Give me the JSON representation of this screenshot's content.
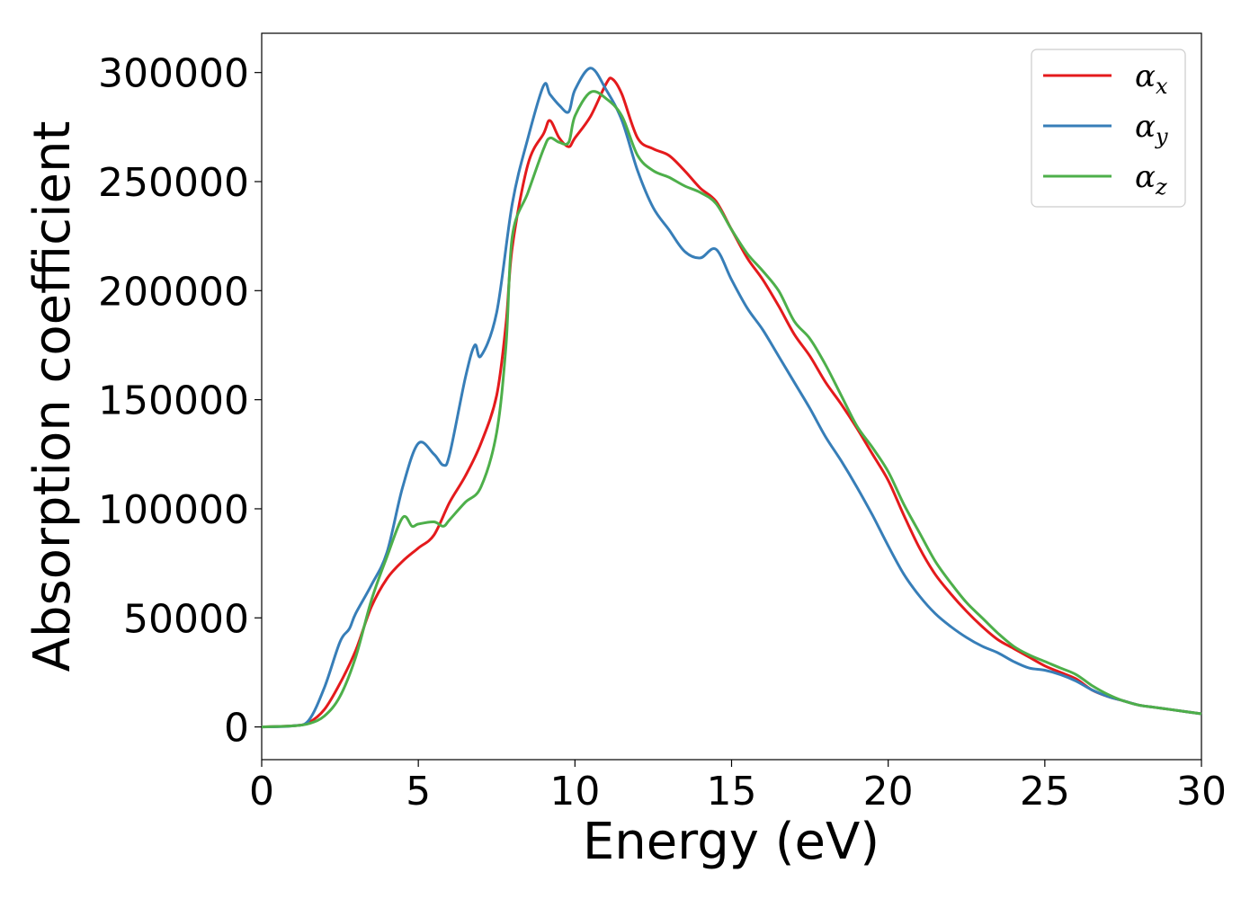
{
  "chart_data": {
    "type": "line",
    "xlabel": "Energy (eV)",
    "ylabel": "Absorption coefficient",
    "xlim": [
      0,
      30
    ],
    "ylim": [
      -15000,
      318000
    ],
    "xticks": [
      0,
      5,
      10,
      15,
      20,
      25,
      30
    ],
    "yticks": [
      0,
      50000,
      100000,
      150000,
      200000,
      250000,
      300000
    ],
    "grid": false,
    "legend_position": "top-right",
    "series": [
      {
        "name": "α",
        "subscript": "x",
        "color": "#e41a1c",
        "x": [
          0,
          1,
          1.5,
          2,
          2.5,
          3,
          3.5,
          4,
          4.5,
          5,
          5.5,
          6,
          6.5,
          7,
          7.5,
          7.8,
          8,
          8.5,
          9,
          9.2,
          9.5,
          9.8,
          10,
          10.5,
          11,
          11.2,
          11.5,
          12,
          12.5,
          13,
          13.5,
          14,
          14.5,
          15,
          15.5,
          16,
          16.5,
          17,
          17.5,
          18,
          18.5,
          19,
          19.5,
          20,
          20.5,
          21,
          21.5,
          22,
          22.5,
          23,
          23.5,
          24,
          24.5,
          25,
          25.5,
          26,
          26.5,
          27,
          27.5,
          28,
          28.5,
          29,
          29.5,
          30
        ],
        "y": [
          0,
          500,
          2000,
          8000,
          20000,
          35000,
          55000,
          68000,
          76000,
          82000,
          88000,
          103000,
          115000,
          130000,
          152000,
          185000,
          220000,
          258000,
          272000,
          278000,
          270000,
          266000,
          270000,
          280000,
          295000,
          297000,
          290000,
          270000,
          265000,
          262000,
          255000,
          247000,
          241000,
          228000,
          215000,
          205000,
          193000,
          180000,
          170000,
          158000,
          148000,
          137000,
          125000,
          113000,
          97000,
          82000,
          70000,
          61000,
          53000,
          46000,
          40000,
          36000,
          32000,
          28000,
          25000,
          22000,
          17000,
          14000,
          12000,
          10000,
          9000,
          8000,
          7000,
          6000
        ]
      },
      {
        "name": "α",
        "subscript": "y",
        "color": "#377eb8",
        "x": [
          0,
          1,
          1.5,
          2,
          2.5,
          2.8,
          3,
          3.5,
          4,
          4.5,
          5,
          5.5,
          5.8,
          6,
          6.5,
          6.8,
          7,
          7.5,
          8,
          8.5,
          9,
          9.2,
          9.5,
          9.8,
          10,
          10.5,
          11,
          11.5,
          12,
          12.5,
          13,
          13.5,
          14,
          14.5,
          15,
          15.5,
          16,
          16.5,
          17,
          17.5,
          18,
          18.5,
          19,
          19.5,
          20,
          20.5,
          21,
          21.5,
          22,
          22.5,
          23,
          23.5,
          24,
          24.5,
          25,
          25.5,
          26,
          26.5,
          27,
          27.5,
          28,
          28.5,
          29,
          29.5,
          30
        ],
        "y": [
          0,
          500,
          3000,
          18000,
          39000,
          45000,
          52000,
          65000,
          80000,
          110000,
          130000,
          125000,
          120000,
          125000,
          160000,
          175000,
          170000,
          190000,
          240000,
          270000,
          294000,
          290000,
          285000,
          282000,
          292000,
          302000,
          292000,
          278000,
          255000,
          238000,
          228000,
          218000,
          215000,
          219000,
          205000,
          192000,
          182000,
          170000,
          158000,
          146000,
          133000,
          122000,
          110000,
          97000,
          83000,
          70000,
          60000,
          52000,
          46000,
          41000,
          37000,
          34000,
          30000,
          27000,
          26000,
          24000,
          21000,
          17000,
          14000,
          12000,
          10000,
          9000,
          8000,
          7000,
          6000
        ]
      },
      {
        "name": "α",
        "subscript": "z",
        "color": "#4daf4a",
        "x": [
          0,
          1,
          1.5,
          2,
          2.5,
          3,
          3.5,
          4,
          4.5,
          4.8,
          5,
          5.5,
          5.8,
          6,
          6.5,
          7,
          7.5,
          7.8,
          8,
          8.5,
          9,
          9.2,
          9.5,
          9.8,
          10,
          10.5,
          11,
          11.5,
          12,
          12.5,
          13,
          13.5,
          14,
          14.5,
          15,
          15.5,
          16,
          16.5,
          17,
          17.5,
          18,
          18.5,
          19,
          19.5,
          20,
          20.5,
          21,
          21.5,
          22,
          22.5,
          23,
          23.5,
          24,
          24.5,
          25,
          25.5,
          26,
          26.5,
          27,
          27.5,
          28,
          28.5,
          29,
          29.5,
          30
        ],
        "y": [
          0,
          500,
          1500,
          5000,
          14000,
          32000,
          58000,
          78000,
          96000,
          92000,
          93000,
          94000,
          92000,
          95000,
          103000,
          110000,
          135000,
          175000,
          225000,
          245000,
          265000,
          270000,
          268000,
          268000,
          280000,
          291000,
          288000,
          280000,
          262000,
          255000,
          252000,
          248000,
          245000,
          240000,
          228000,
          217000,
          209000,
          200000,
          186000,
          178000,
          166000,
          152000,
          138000,
          128000,
          117000,
          102000,
          89000,
          76000,
          66000,
          57000,
          50000,
          43000,
          37000,
          33000,
          30000,
          27000,
          24000,
          19000,
          15000,
          12000,
          10000,
          9000,
          8000,
          7000,
          6000
        ]
      }
    ]
  }
}
